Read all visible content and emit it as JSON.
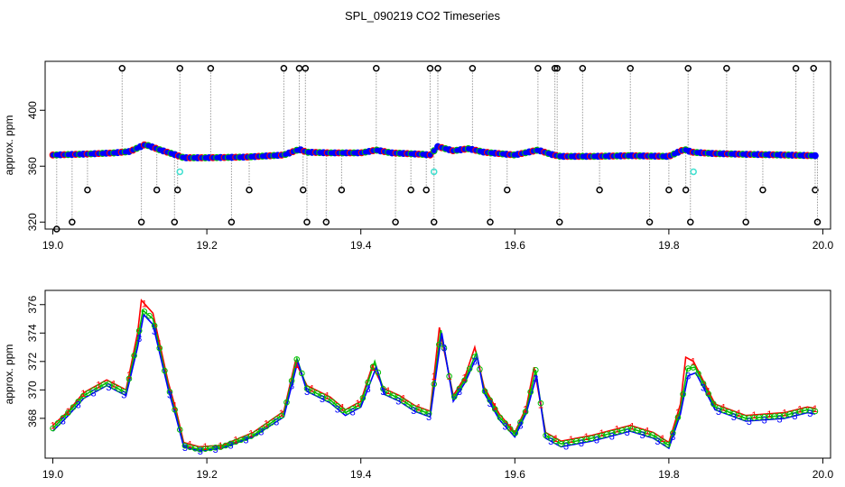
{
  "figure": {
    "title": "SPL_090219  CO2 Timeseries"
  },
  "colors": {
    "spike": "#000000",
    "baseline": "#0000ff",
    "outline_red": "#ff0000",
    "outline_green": "#00c000",
    "cyan": "#40e0d0",
    "connector": "#9a9a9a",
    "series_1": "#ff0000",
    "series_2": "#00c000",
    "series_3": "#0000ff"
  },
  "chart_data": [
    {
      "type": "scatter",
      "title": "SPL_090219  CO2 Timeseries",
      "xlabel": "",
      "ylabel": "approx. ppm",
      "xlim": [
        18.99,
        20.01
      ],
      "ylim": [
        315,
        435
      ],
      "x_ticks": [
        19.0,
        19.2,
        19.4,
        19.6,
        19.8,
        20.0
      ],
      "x_tick_labels": [
        "19.0",
        "19.2",
        "19.4",
        "19.6",
        "19.8",
        "20.0"
      ],
      "y_ticks": [
        320,
        360,
        400
      ],
      "y_tick_labels": [
        "320",
        "360",
        "400"
      ],
      "baseline": {
        "x": [
          19.0,
          19.04,
          19.08,
          19.1,
          19.12,
          19.14,
          19.16,
          19.17,
          19.2,
          19.25,
          19.3,
          19.32,
          19.33,
          19.36,
          19.4,
          19.42,
          19.44,
          19.48,
          19.49,
          19.5,
          19.52,
          19.54,
          19.56,
          19.6,
          19.63,
          19.65,
          19.66,
          19.7,
          19.75,
          19.8,
          19.82,
          19.83,
          19.86,
          19.9,
          19.95,
          19.99
        ],
        "y": [
          368,
          368.6,
          369.5,
          370.5,
          375.5,
          371.5,
          368,
          366,
          366,
          366.5,
          368,
          372,
          370,
          369.5,
          369.5,
          371.5,
          369.5,
          368.5,
          368,
          374,
          371,
          372.5,
          370,
          368,
          371.5,
          368,
          367,
          367,
          367.5,
          367,
          372,
          370,
          369,
          368.5,
          368,
          367.5
        ]
      },
      "cyan_points": {
        "x": [
          19.165,
          19.495,
          19.832
        ],
        "y": [
          356,
          356,
          356
        ]
      },
      "spikes": {
        "x": [
          19.005,
          19.025,
          19.045,
          19.09,
          19.115,
          19.135,
          19.158,
          19.162,
          19.165,
          19.205,
          19.232,
          19.255,
          19.3,
          19.32,
          19.325,
          19.328,
          19.33,
          19.355,
          19.375,
          19.42,
          19.445,
          19.465,
          19.485,
          19.49,
          19.495,
          19.5,
          19.545,
          19.568,
          19.59,
          19.63,
          19.652,
          19.655,
          19.658,
          19.688,
          19.71,
          19.75,
          19.775,
          19.8,
          19.822,
          19.825,
          19.828,
          19.875,
          19.9,
          19.922,
          19.965,
          19.988,
          19.99,
          19.993
        ],
        "y": [
          315,
          320,
          343,
          430,
          320,
          343,
          320,
          343,
          430,
          430,
          320,
          343,
          430,
          430,
          343,
          430,
          320,
          320,
          343,
          430,
          320,
          343,
          343,
          430,
          320,
          430,
          430,
          320,
          343,
          430,
          430,
          430,
          320,
          430,
          343,
          430,
          320,
          343,
          343,
          430,
          320,
          430,
          320,
          343,
          430,
          430,
          343,
          320
        ]
      }
    },
    {
      "type": "line",
      "title": "",
      "xlabel": "",
      "ylabel": "approx. ppm",
      "xlim": [
        18.99,
        20.01
      ],
      "ylim": [
        365.2,
        377
      ],
      "x_ticks": [
        19.0,
        19.2,
        19.4,
        19.6,
        19.8,
        20.0
      ],
      "x_tick_labels": [
        "19.0",
        "19.2",
        "19.4",
        "19.6",
        "19.8",
        "20.0"
      ],
      "y_ticks": [
        368,
        370,
        372,
        374,
        376
      ],
      "y_tick_labels": [
        "368",
        "370",
        "372",
        "374",
        "376"
      ],
      "series": [
        {
          "name": "1",
          "marker": "1",
          "x": [
            19.0,
            19.02,
            19.04,
            19.07,
            19.095,
            19.11,
            19.115,
            19.13,
            19.15,
            19.16,
            19.17,
            19.19,
            19.22,
            19.26,
            19.3,
            19.315,
            19.33,
            19.36,
            19.38,
            19.4,
            19.415,
            19.43,
            19.45,
            19.47,
            19.49,
            19.502,
            19.52,
            19.535,
            19.548,
            19.56,
            19.58,
            19.6,
            19.615,
            19.625,
            19.64,
            19.66,
            19.7,
            19.75,
            19.78,
            19.8,
            19.815,
            19.822,
            19.832,
            19.86,
            19.9,
            19.95,
            19.98,
            19.99
          ],
          "y": [
            367.5,
            368.5,
            369.8,
            370.7,
            370.0,
            374.0,
            376.3,
            375.4,
            370.5,
            368.6,
            366.3,
            366.0,
            366.1,
            367.0,
            368.5,
            372.0,
            370.3,
            369.5,
            368.6,
            369.2,
            371.7,
            370.1,
            369.6,
            368.9,
            368.5,
            374.4,
            369.6,
            370.9,
            373.0,
            370.2,
            368.3,
            367.0,
            368.8,
            371.6,
            367.0,
            366.4,
            366.8,
            367.5,
            367.0,
            366.3,
            369.0,
            372.3,
            372.0,
            369.0,
            368.2,
            368.4,
            368.8,
            368.7
          ]
        },
        {
          "name": "2",
          "marker": "o",
          "x": [
            19.0,
            19.02,
            19.04,
            19.07,
            19.095,
            19.11,
            19.117,
            19.13,
            19.15,
            19.16,
            19.17,
            19.19,
            19.22,
            19.26,
            19.3,
            19.317,
            19.33,
            19.36,
            19.38,
            19.4,
            19.418,
            19.43,
            19.45,
            19.47,
            19.49,
            19.504,
            19.52,
            19.535,
            19.55,
            19.56,
            19.58,
            19.6,
            19.615,
            19.627,
            19.64,
            19.66,
            19.7,
            19.75,
            19.78,
            19.8,
            19.815,
            19.824,
            19.834,
            19.86,
            19.9,
            19.95,
            19.98,
            19.99
          ],
          "y": [
            367.3,
            368.4,
            369.6,
            370.5,
            369.8,
            373.5,
            375.6,
            375.0,
            370.2,
            368.3,
            366.1,
            365.8,
            366.0,
            366.8,
            368.3,
            372.2,
            370.1,
            369.3,
            368.4,
            369.0,
            372.0,
            369.9,
            369.4,
            368.7,
            368.3,
            374.2,
            369.4,
            370.7,
            372.6,
            370.0,
            368.1,
            366.9,
            368.6,
            371.4,
            366.8,
            366.2,
            366.6,
            367.3,
            366.8,
            366.1,
            368.6,
            371.5,
            371.6,
            368.8,
            368.0,
            368.2,
            368.6,
            368.5
          ]
        },
        {
          "name": "3",
          "marker": "3",
          "x": [
            19.0,
            19.02,
            19.04,
            19.07,
            19.095,
            19.11,
            19.118,
            19.13,
            19.15,
            19.16,
            19.17,
            19.19,
            19.22,
            19.26,
            19.3,
            19.318,
            19.33,
            19.36,
            19.38,
            19.4,
            19.42,
            19.43,
            19.45,
            19.47,
            19.49,
            19.505,
            19.52,
            19.535,
            19.551,
            19.56,
            19.58,
            19.6,
            19.615,
            19.628,
            19.64,
            19.66,
            19.7,
            19.75,
            19.78,
            19.8,
            19.815,
            19.825,
            19.835,
            19.86,
            19.9,
            19.95,
            19.98,
            19.99
          ],
          "y": [
            367.1,
            368.2,
            369.4,
            370.3,
            369.6,
            373.0,
            375.3,
            374.6,
            370.0,
            368.1,
            366.0,
            365.7,
            365.9,
            366.7,
            368.1,
            372.0,
            369.9,
            369.1,
            368.2,
            368.8,
            371.6,
            369.7,
            369.2,
            368.5,
            368.1,
            374.0,
            369.2,
            370.5,
            372.4,
            369.8,
            367.9,
            366.7,
            368.4,
            371.0,
            366.6,
            366.0,
            366.4,
            367.1,
            366.6,
            365.9,
            368.3,
            371.0,
            371.2,
            368.6,
            367.8,
            368.0,
            368.4,
            368.3
          ]
        }
      ]
    }
  ]
}
